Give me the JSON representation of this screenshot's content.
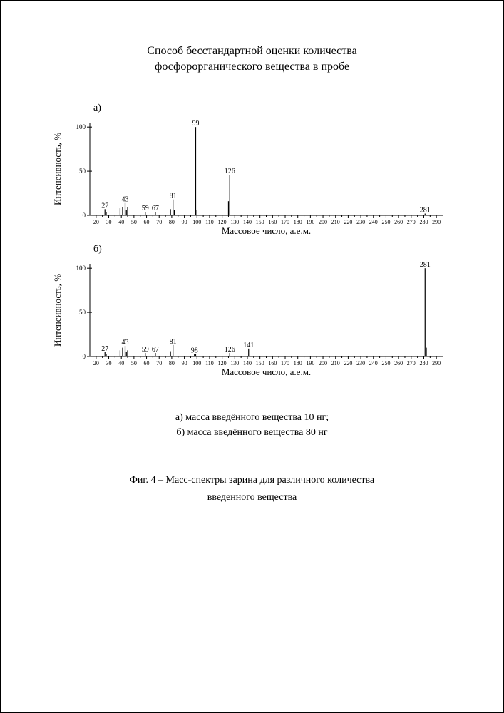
{
  "title_line1": "Способ бесстандартной оценки количества",
  "title_line2": "фосфорорганического вещества в пробе",
  "panels": {
    "a": {
      "letter": "а)",
      "ylabel": "Интенсивность, %",
      "xlabel": "Массовое число, а.е.м.",
      "xlim": [
        15,
        295
      ],
      "ylim": [
        0,
        105
      ],
      "xtick_start": 20,
      "xtick_step": 10,
      "xtick_end": 290,
      "yticks": [
        0,
        50,
        100
      ],
      "axis_color": "#000000",
      "bg_color": "#ffffff",
      "bar_color": "#000000",
      "bar_width": 1.2,
      "label_fontsize": 10,
      "tick_fontsize": 8,
      "axis_label_fontsize": 13,
      "peaks": [
        {
          "mz": 27,
          "intensity": 7,
          "label": "27"
        },
        {
          "mz": 28,
          "intensity": 4,
          "label": ""
        },
        {
          "mz": 39,
          "intensity": 8,
          "label": ""
        },
        {
          "mz": 41,
          "intensity": 9,
          "label": ""
        },
        {
          "mz": 43,
          "intensity": 14,
          "label": "43"
        },
        {
          "mz": 44,
          "intensity": 6,
          "label": ""
        },
        {
          "mz": 45,
          "intensity": 9,
          "label": ""
        },
        {
          "mz": 59,
          "intensity": 4,
          "label": "59"
        },
        {
          "mz": 67,
          "intensity": 4,
          "label": "67"
        },
        {
          "mz": 79,
          "intensity": 7,
          "label": ""
        },
        {
          "mz": 81,
          "intensity": 18,
          "label": "81"
        },
        {
          "mz": 82,
          "intensity": 6,
          "label": ""
        },
        {
          "mz": 99,
          "intensity": 100,
          "label": "99"
        },
        {
          "mz": 100,
          "intensity": 6,
          "label": ""
        },
        {
          "mz": 125,
          "intensity": 16,
          "label": ""
        },
        {
          "mz": 126,
          "intensity": 46,
          "label": "126"
        },
        {
          "mz": 281,
          "intensity": 2,
          "label": "281"
        }
      ]
    },
    "b": {
      "letter": "б)",
      "ylabel": "Интенсивность, %",
      "xlabel": "Массовое число, а.е.м.",
      "xlim": [
        15,
        295
      ],
      "ylim": [
        0,
        105
      ],
      "xtick_start": 20,
      "xtick_step": 10,
      "xtick_end": 290,
      "yticks": [
        0,
        50,
        100
      ],
      "axis_color": "#000000",
      "bg_color": "#ffffff",
      "bar_color": "#000000",
      "bar_width": 1.2,
      "label_fontsize": 10,
      "tick_fontsize": 8,
      "axis_label_fontsize": 13,
      "peaks": [
        {
          "mz": 27,
          "intensity": 5,
          "label": "27"
        },
        {
          "mz": 28,
          "intensity": 3,
          "label": ""
        },
        {
          "mz": 39,
          "intensity": 7,
          "label": ""
        },
        {
          "mz": 41,
          "intensity": 10,
          "label": ""
        },
        {
          "mz": 43,
          "intensity": 12,
          "label": "43"
        },
        {
          "mz": 44,
          "intensity": 5,
          "label": ""
        },
        {
          "mz": 45,
          "intensity": 7,
          "label": ""
        },
        {
          "mz": 59,
          "intensity": 4,
          "label": "59"
        },
        {
          "mz": 67,
          "intensity": 4,
          "label": "67"
        },
        {
          "mz": 79,
          "intensity": 6,
          "label": ""
        },
        {
          "mz": 81,
          "intensity": 13,
          "label": "81"
        },
        {
          "mz": 98,
          "intensity": 3,
          "label": "98"
        },
        {
          "mz": 99,
          "intensity": 3,
          "label": ""
        },
        {
          "mz": 126,
          "intensity": 4,
          "label": "126"
        },
        {
          "mz": 141,
          "intensity": 9,
          "label": "141"
        },
        {
          "mz": 281,
          "intensity": 100,
          "label": "281"
        },
        {
          "mz": 282,
          "intensity": 10,
          "label": ""
        }
      ]
    }
  },
  "caption_a": "а) масса введённого вещества 10 нг;",
  "caption_b": "б) масса введённого вещества 80 нг",
  "fig_caption_line1": "Фиг. 4 – Масс-спектры зарина для различного количества",
  "fig_caption_line2": "введенного вещества"
}
